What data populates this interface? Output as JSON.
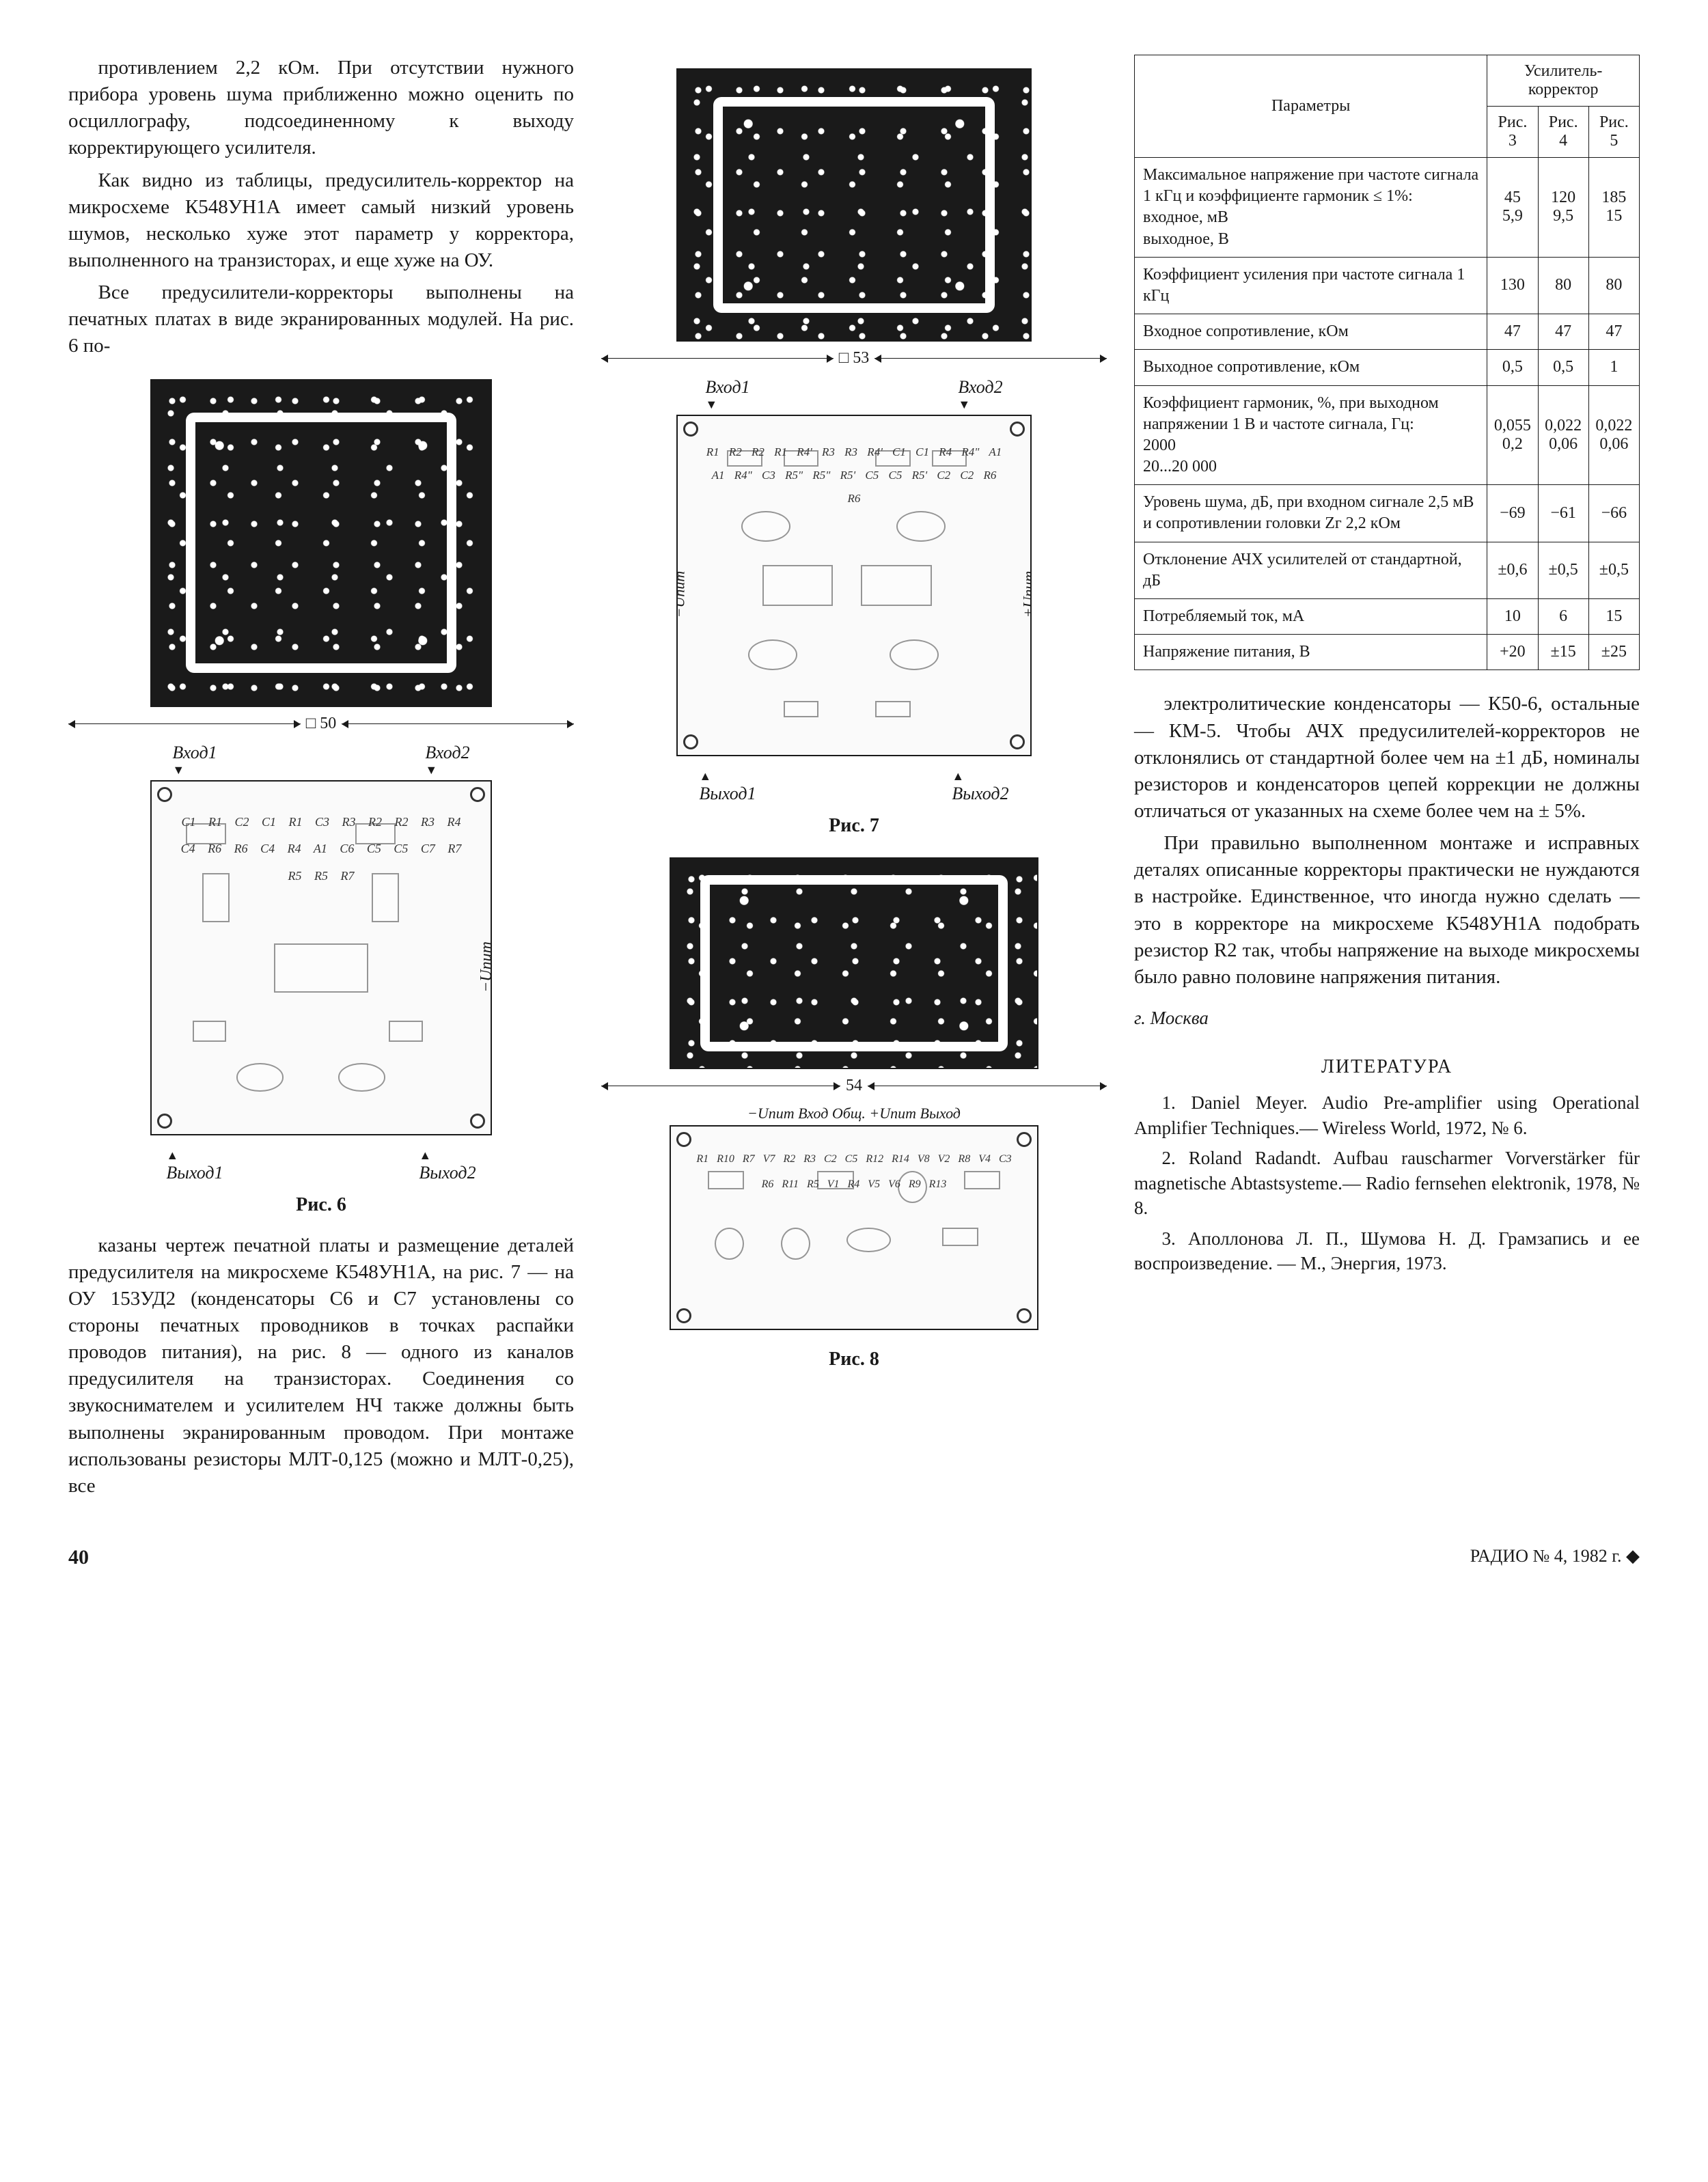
{
  "text": {
    "col1_p1": "противлением 2,2 кОм. При отсутствии нужного прибора уровень шума приближенно можно оценить по осциллографу, подсоединенному к выходу корректирующего усилителя.",
    "col1_p2": "Как видно из таблицы, предусилитель-корректор на микросхеме К548УН1А имеет самый низкий уровень шумов, несколько хуже этот параметр у корректора, выполненного на транзисторах, и еще хуже на ОУ.",
    "col1_p3": "Все предусилители-корректоры выполнены на печатных платах в виде экранированных модулей. На рис. 6 по-",
    "col1_p4": "казаны чертеж печатной платы и размещение деталей предусилителя на микросхеме К548УН1А, на рис. 7 — на ОУ 153УД2 (конденсаторы С6 и С7 установлены со стороны печатных проводников в точках распайки проводов питания), на рис. 8 — одного из каналов предусилителя на транзисторах. Соединения со звукоснимателем и усилителем НЧ также должны быть выполнены экранированным проводом. При монтаже использованы резисторы МЛТ-0,125 (можно и МЛТ-0,25), все",
    "col3_p1": "электролитические конденсаторы — К50-6, остальные — КМ-5. Чтобы АЧХ предусилителей-корректоров не отклонялись от стандартной более чем на ±1 дБ, номиналы резисторов и конденсаторов цепей коррекции не должны отличаться от указанных на схеме более чем на ± 5%.",
    "col3_p2": "При правильно выполненном монтаже и исправных деталях описанные корректоры практически не нуждаются в настройке. Единственное, что иногда нужно сделать — это в корректоре на микросхеме К548УН1А подобрать резистор R2 так, чтобы напряжение на выходе микросхемы было равно половине напряжения питания.",
    "city": "г. Москва"
  },
  "figures": {
    "fig6": {
      "caption": "Рис. 6",
      "pcb_w": 500,
      "pcb_h": 480,
      "layout_w": 500,
      "layout_h": 560,
      "dim_label": "□ 50",
      "input1": "Вход1",
      "input2": "Вход2",
      "output1": "Выход1",
      "output2": "Выход2",
      "components": "C1 R1 C2 C1 R1 C3 R3 R2 R2 R3 R4 C4 R6 R6 C4 R4 A1 C6 C5 C5 C7 R7 R5 R5 R7",
      "side_label": "−Uпит"
    },
    "fig7": {
      "caption": "Рис. 7",
      "pcb_w": 520,
      "pcb_h": 400,
      "layout_w": 520,
      "layout_h": 520,
      "dim_label": "□ 53",
      "input1": "Вход1",
      "input2": "Вход2",
      "output1": "Выход1",
      "output2": "Выход2",
      "components": "R1 R2 R2 R1 R4' R3 R3 R4' C1 C1 R4 R4\" A1 A1 R4\" C3 R5\" R5\" R5' C5 C5 R5' C2 C2 R6 R6",
      "side_label_l": "−Uпит",
      "side_label_r": "+Uпит"
    },
    "fig8": {
      "caption": "Рис. 8",
      "pcb_w": 540,
      "pcb_h": 320,
      "layout_w": 540,
      "layout_h": 340,
      "dim_label": "54",
      "dim_v": "30",
      "top_labels": "−Uпит Вход Общ. +Uпит Выход",
      "components": "R1 R10 R7 V7 R2 R3 C2 C5 R12 R14 V8 V2 R8 V4 C3 R6 R11 R5 V1 R4 V5 V6 R9 R13"
    }
  },
  "table": {
    "header_params": "Параметры",
    "header_group": "Усилитель-корректор",
    "cols": [
      "Рис. 3",
      "Рис. 4",
      "Рис. 5"
    ],
    "rows": [
      {
        "name": "Максимальное напряжение при частоте сигнала 1 кГц и коэффициенте гармоник ≤ 1%:\nвходное, мВ\nвыходное, В",
        "v": [
          "45\n5,9",
          "120\n9,5",
          "185\n15"
        ]
      },
      {
        "name": "Коэффициент усиления при частоте сигнала 1 кГц",
        "v": [
          "130",
          "80",
          "80"
        ]
      },
      {
        "name": "Входное сопротивление, кОм",
        "v": [
          "47",
          "47",
          "47"
        ]
      },
      {
        "name": "Выходное сопротивление, кОм",
        "v": [
          "0,5",
          "0,5",
          "1"
        ]
      },
      {
        "name": "Коэффициент гармоник, %, при выходном напряжении 1 В и частоте сигнала, Гц:\n2000\n20...20 000",
        "v": [
          "0,055\n0,2",
          "0,022\n0,06",
          "0,022\n0,06"
        ]
      },
      {
        "name": "Уровень шума, дБ, при входном сигнале 2,5 мВ и сопротивлении головки Zг 2,2 кОм",
        "v": [
          "−69",
          "−61",
          "−66"
        ]
      },
      {
        "name": "Отклонение АЧХ усилителей от стандартной, дБ",
        "v": [
          "±0,6",
          "±0,5",
          "±0,5"
        ]
      },
      {
        "name": "Потребляемый ток, мА",
        "v": [
          "10",
          "6",
          "15"
        ]
      },
      {
        "name": "Напряжение питания, В",
        "v": [
          "+20",
          "±15",
          "±25"
        ]
      }
    ]
  },
  "literature": {
    "title": "ЛИТЕРАТУРА",
    "items": [
      "1. Daniel Meyer. Audio Pre-amplifier using Operational Amplifier Techniques.— Wireless World, 1972, № 6.",
      "2. Roland Radandt. Aufbau rauscharmer Vorverstärker für magnetische Abtastsysteme.— Radio fernsehen elektronik, 1978, № 8.",
      "3. Аполлонова Л. П., Шумова Н. Д. Грамзапись и ее воспроизведение. — М., Энергия, 1973."
    ]
  },
  "footer": {
    "page": "40",
    "mag": "РАДИО № 4, 1982 г. ◆"
  }
}
